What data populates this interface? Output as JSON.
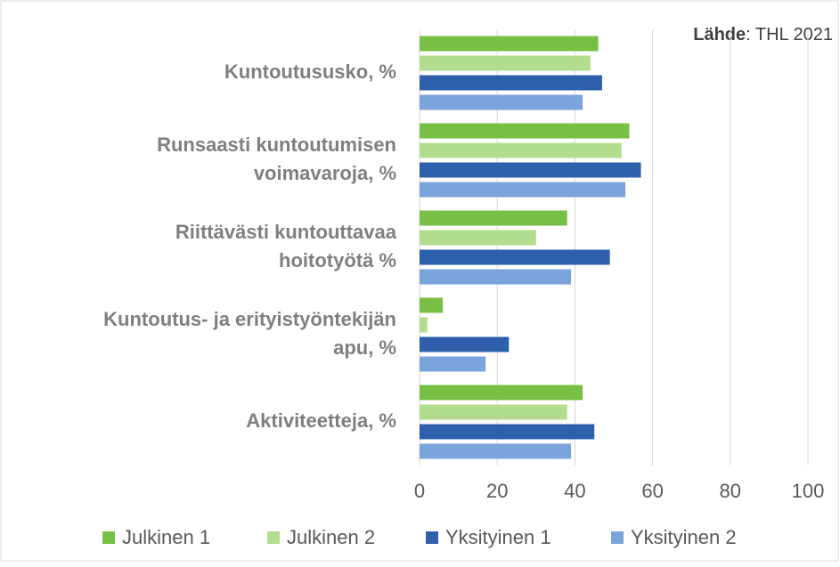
{
  "chart_data": {
    "type": "bar",
    "orientation": "horizontal",
    "annotation_label": "Lähde",
    "annotation_text": ": THL 2021",
    "categories": [
      "Kuntoutususko, %",
      "Runsaasti kuntoutumisen\nvoimavaroja, %",
      "Riittävästi kuntouttavaa\nhoitotyötä %",
      "Kuntoutus- ja erityistyöntekijän\napu, %",
      "Aktiviteetteja, %"
    ],
    "series": [
      {
        "name": "Julkinen 1",
        "color": "#77c043",
        "values": [
          46,
          54,
          38,
          6,
          42
        ]
      },
      {
        "name": "Julkinen 2",
        "color": "#b3dd8e",
        "values": [
          44,
          52,
          30,
          2,
          38
        ]
      },
      {
        "name": "Yksityinen 1",
        "color": "#2e5fad",
        "values": [
          47,
          57,
          49,
          23,
          45
        ]
      },
      {
        "name": "Yksityinen 2",
        "color": "#7ba3dc",
        "values": [
          42,
          53,
          39,
          17,
          39
        ]
      }
    ],
    "xlim": [
      0,
      100
    ],
    "xticks": [
      0,
      20,
      40,
      60,
      80,
      100
    ],
    "grid": true,
    "legend": "bottom"
  }
}
